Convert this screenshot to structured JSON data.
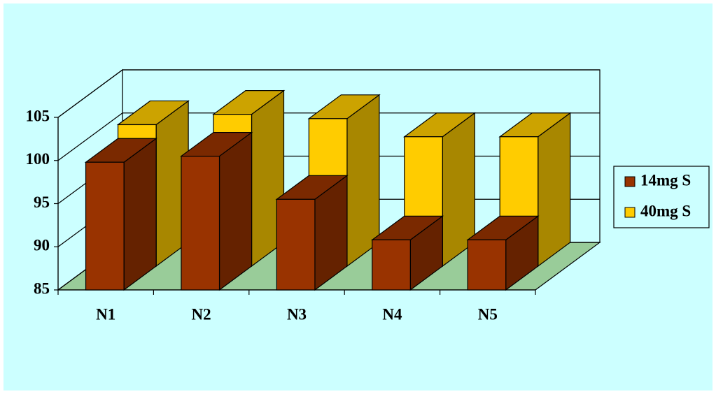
{
  "chart_data": {
    "type": "bar3d",
    "categories": [
      "N1",
      "N2",
      "N3",
      "N4",
      "N5"
    ],
    "series": [
      {
        "name": "14mg S",
        "color": "#993300",
        "values": [
          99.8,
          100.5,
          95.5,
          90.8,
          90.8
        ]
      },
      {
        "name": "40mg S",
        "color": "#ffcc00",
        "values": [
          101.4,
          102.6,
          102.1,
          100,
          100
        ]
      }
    ],
    "ylim": [
      85,
      105
    ],
    "yticks": [
      85,
      90,
      95,
      100,
      105
    ],
    "grid": true,
    "legend": "right"
  }
}
